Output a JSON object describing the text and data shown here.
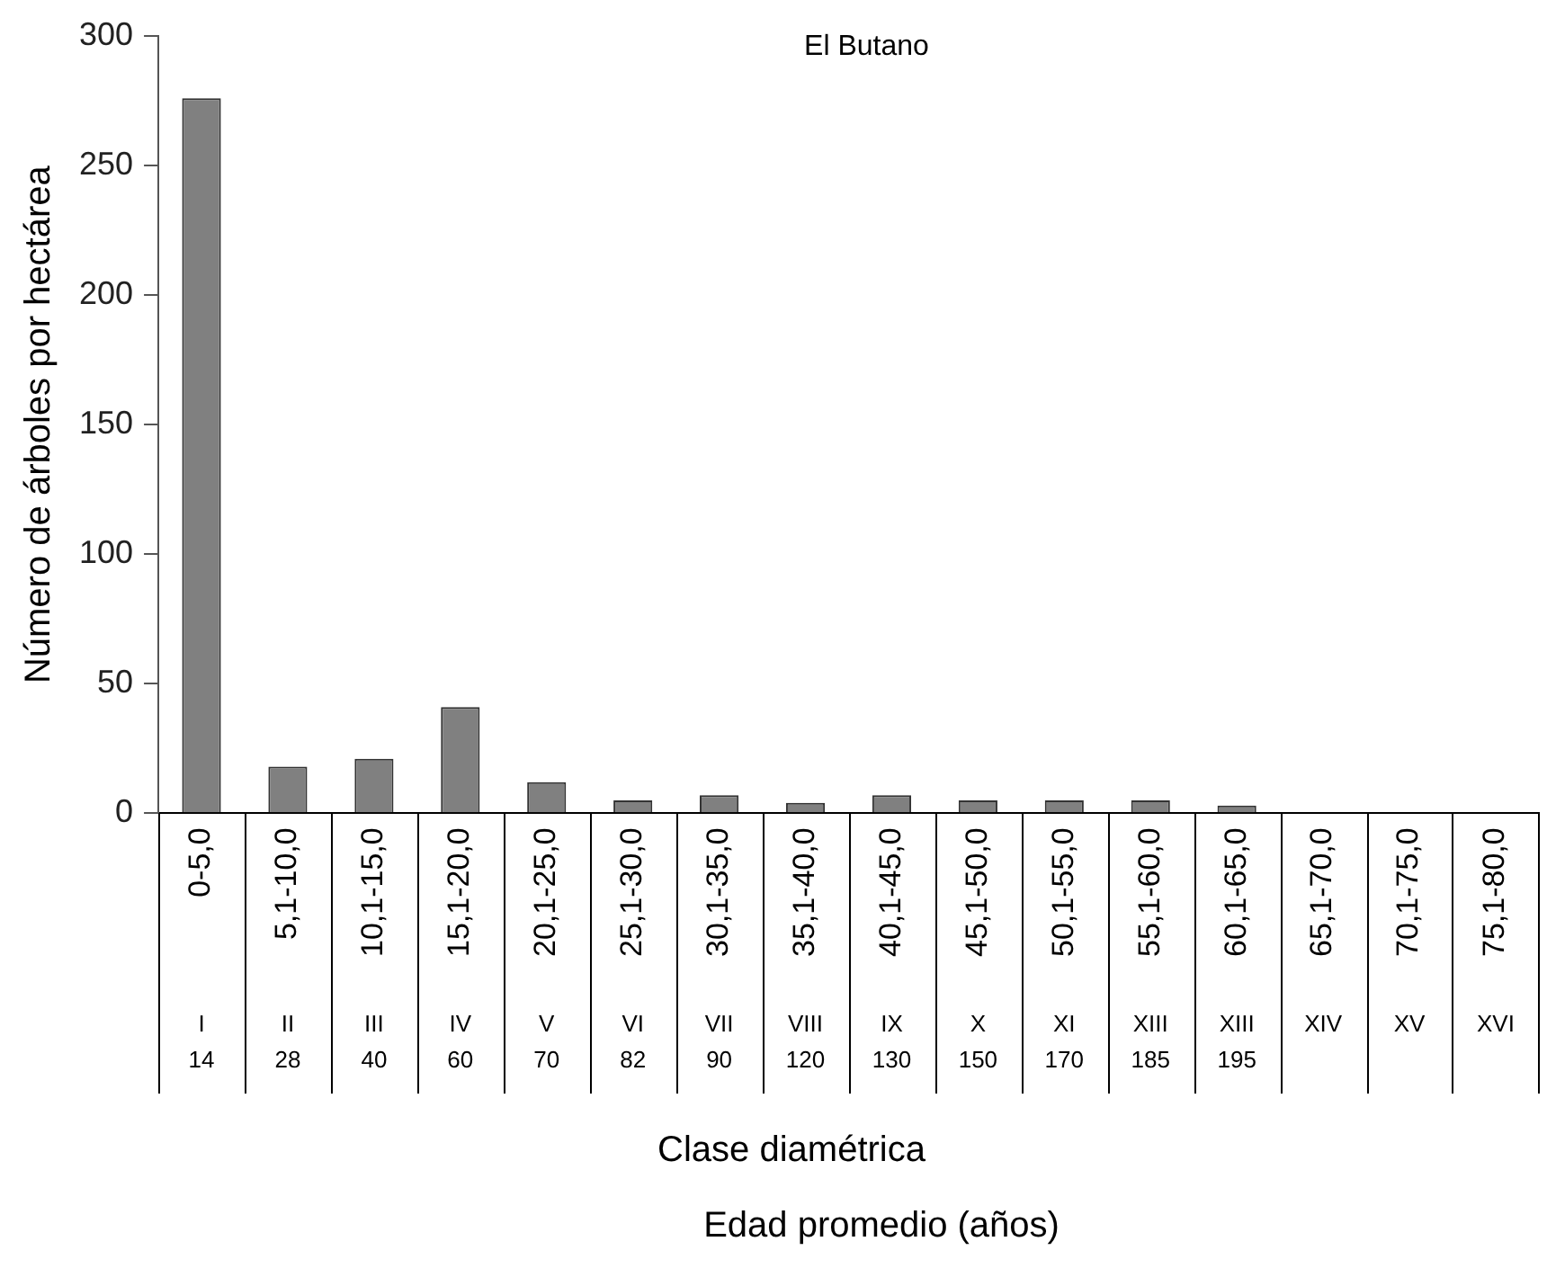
{
  "chart_data": {
    "type": "bar",
    "title": "El Butano",
    "xlabel": "Clase diamétrica",
    "ylabel": "Número de árboles por hectárea",
    "categories": [
      "0-5,0",
      "5,1-10,0",
      "10,1-15,0",
      "15,1-20,0",
      "20,1-25,0",
      "25,1-30,0",
      "30,1-35,0",
      "35,1-40,0",
      "40,1-45,0",
      "45,1-50,0",
      "50,1-55,0",
      "55,1-60,0",
      "60,1-65,0",
      "65,1-70,0",
      "70,1-75,0",
      "75,1-80,0"
    ],
    "values": [
      276,
      18,
      21,
      41,
      12,
      5,
      7,
      4,
      7,
      5,
      5,
      5,
      3,
      0,
      0,
      0
    ],
    "color": "#808080",
    "ylim": [
      0,
      300
    ],
    "yticks": [
      0,
      50,
      100,
      150,
      200,
      250,
      300
    ],
    "grid": false,
    "legend": false,
    "annotations": [
      "I\n14",
      "II\n28",
      "III\n40",
      "IV\n60",
      "V\n70",
      "VI\n82",
      "VII\n90",
      "VIII\n120",
      "IX\n130",
      "X\n150",
      "XI\n170",
      "XIII\n185",
      "XIII\n195",
      "XIV",
      "XV",
      "XVI",
      "Edad promedio (años)"
    ]
  }
}
